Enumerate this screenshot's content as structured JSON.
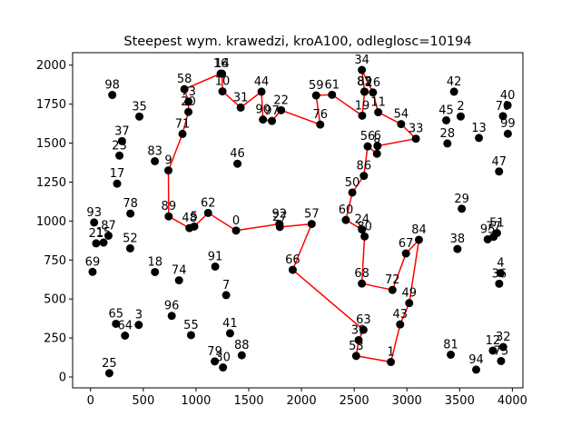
{
  "chart_data": {
    "type": "scatter",
    "title": "Steepest wym. krawedzi, kroA100, odleglosc=10194",
    "xlabel": "",
    "ylabel": "",
    "xlim": [
      -170,
      4100
    ],
    "ylim": [
      -70,
      2080
    ],
    "xticks": [
      0,
      500,
      1000,
      1500,
      2000,
      2500,
      3000,
      3500,
      4000
    ],
    "yticks": [
      0,
      250,
      500,
      750,
      1000,
      1250,
      1500,
      1750,
      2000
    ],
    "grid": false,
    "point_color": "#000000",
    "route_color": "#ff0000",
    "points": [
      {
        "id": "0",
        "x": 1380,
        "y": 939
      },
      {
        "id": "1",
        "x": 2848,
        "y": 96
      },
      {
        "id": "2",
        "x": 3510,
        "y": 1671
      },
      {
        "id": "3",
        "x": 457,
        "y": 334
      },
      {
        "id": "4",
        "x": 3888,
        "y": 666
      },
      {
        "id": "5",
        "x": 984,
        "y": 965
      },
      {
        "id": "6",
        "x": 2721,
        "y": 1482
      },
      {
        "id": "7",
        "x": 1286,
        "y": 525
      },
      {
        "id": "8",
        "x": 2716,
        "y": 1432
      },
      {
        "id": "9",
        "x": 738,
        "y": 1325
      },
      {
        "id": "10",
        "x": 1251,
        "y": 1832
      },
      {
        "id": "11",
        "x": 2728,
        "y": 1698
      },
      {
        "id": "12",
        "x": 3815,
        "y": 169
      },
      {
        "id": "13",
        "x": 3683,
        "y": 1533
      },
      {
        "id": "14",
        "x": 1247,
        "y": 1945
      },
      {
        "id": "15",
        "x": 123,
        "y": 862
      },
      {
        "id": "16",
        "x": 1234,
        "y": 1946
      },
      {
        "id": "17",
        "x": 252,
        "y": 1240
      },
      {
        "id": "18",
        "x": 611,
        "y": 673
      },
      {
        "id": "19",
        "x": 2576,
        "y": 1676
      },
      {
        "id": "20",
        "x": 928,
        "y": 1700
      },
      {
        "id": "21",
        "x": 53,
        "y": 857
      },
      {
        "id": "22",
        "x": 1807,
        "y": 1711
      },
      {
        "id": "23",
        "x": 274,
        "y": 1420
      },
      {
        "id": "24",
        "x": 2574,
        "y": 946
      },
      {
        "id": "25",
        "x": 178,
        "y": 24
      },
      {
        "id": "26",
        "x": 2678,
        "y": 1825
      },
      {
        "id": "27",
        "x": 1795,
        "y": 962
      },
      {
        "id": "28",
        "x": 3384,
        "y": 1498
      },
      {
        "id": "29",
        "x": 3520,
        "y": 1079
      },
      {
        "id": "30",
        "x": 1256,
        "y": 61
      },
      {
        "id": "31",
        "x": 1424,
        "y": 1728
      },
      {
        "id": "32",
        "x": 3913,
        "y": 192
      },
      {
        "id": "33",
        "x": 3085,
        "y": 1528
      },
      {
        "id": "34",
        "x": 2573,
        "y": 1969
      },
      {
        "id": "35",
        "x": 463,
        "y": 1670
      },
      {
        "id": "36",
        "x": 3875,
        "y": 598
      },
      {
        "id": "37",
        "x": 298,
        "y": 1513
      },
      {
        "id": "38",
        "x": 3479,
        "y": 821
      },
      {
        "id": "39",
        "x": 2542,
        "y": 236
      },
      {
        "id": "40",
        "x": 3955,
        "y": 1743
      },
      {
        "id": "41",
        "x": 1323,
        "y": 280
      },
      {
        "id": "42",
        "x": 3447,
        "y": 1830
      },
      {
        "id": "43",
        "x": 2936,
        "y": 337
      },
      {
        "id": "44",
        "x": 1621,
        "y": 1830
      },
      {
        "id": "45",
        "x": 3373,
        "y": 1646
      },
      {
        "id": "46",
        "x": 1393,
        "y": 1368
      },
      {
        "id": "47",
        "x": 3874,
        "y": 1318
      },
      {
        "id": "48",
        "x": 938,
        "y": 955
      },
      {
        "id": "49",
        "x": 3022,
        "y": 474
      },
      {
        "id": "50",
        "x": 2482,
        "y": 1183
      },
      {
        "id": "51",
        "x": 3854,
        "y": 923
      },
      {
        "id": "52",
        "x": 376,
        "y": 825
      },
      {
        "id": "53",
        "x": 2519,
        "y": 135
      },
      {
        "id": "54",
        "x": 2945,
        "y": 1622
      },
      {
        "id": "55",
        "x": 953,
        "y": 268
      },
      {
        "id": "56",
        "x": 2628,
        "y": 1479
      },
      {
        "id": "57",
        "x": 2097,
        "y": 981
      },
      {
        "id": "58",
        "x": 890,
        "y": 1846
      },
      {
        "id": "59",
        "x": 2139,
        "y": 1806
      },
      {
        "id": "60",
        "x": 2421,
        "y": 1007
      },
      {
        "id": "61",
        "x": 2290,
        "y": 1810
      },
      {
        "id": "62",
        "x": 1115,
        "y": 1052
      },
      {
        "id": "63",
        "x": 2588,
        "y": 302
      },
      {
        "id": "64",
        "x": 327,
        "y": 265
      },
      {
        "id": "65",
        "x": 241,
        "y": 341
      },
      {
        "id": "66",
        "x": 1917,
        "y": 687
      },
      {
        "id": "67",
        "x": 2991,
        "y": 792
      },
      {
        "id": "68",
        "x": 2573,
        "y": 599
      },
      {
        "id": "69",
        "x": 19,
        "y": 674
      },
      {
        "id": "70",
        "x": 3911,
        "y": 1673
      },
      {
        "id": "71",
        "x": 872,
        "y": 1559
      },
      {
        "id": "72",
        "x": 2863,
        "y": 558
      },
      {
        "id": "73",
        "x": 929,
        "y": 1766
      },
      {
        "id": "74",
        "x": 839,
        "y": 620
      },
      {
        "id": "75",
        "x": 3893,
        "y": 102
      },
      {
        "id": "76",
        "x": 2178,
        "y": 1619
      },
      {
        "id": "77",
        "x": 3822,
        "y": 899
      },
      {
        "id": "78",
        "x": 378,
        "y": 1048
      },
      {
        "id": "79",
        "x": 1178,
        "y": 100
      },
      {
        "id": "80",
        "x": 2599,
        "y": 901
      },
      {
        "id": "81",
        "x": 3416,
        "y": 143
      },
      {
        "id": "82",
        "x": 2597,
        "y": 1830
      },
      {
        "id": "83",
        "x": 610,
        "y": 1384
      },
      {
        "id": "84",
        "x": 3114,
        "y": 880
      },
      {
        "id": "85",
        "x": 2599,
        "y": 1830
      },
      {
        "id": "86",
        "x": 2592,
        "y": 1290
      },
      {
        "id": "87",
        "x": 170,
        "y": 906
      },
      {
        "id": "88",
        "x": 1434,
        "y": 139
      },
      {
        "id": "89",
        "x": 741,
        "y": 1030
      },
      {
        "id": "90",
        "x": 1635,
        "y": 1651
      },
      {
        "id": "91",
        "x": 1182,
        "y": 708
      },
      {
        "id": "92",
        "x": 1791,
        "y": 981
      },
      {
        "id": "93",
        "x": 34,
        "y": 991
      },
      {
        "id": "94",
        "x": 3657,
        "y": 47
      },
      {
        "id": "95",
        "x": 3766,
        "y": 883
      },
      {
        "id": "96",
        "x": 770,
        "y": 392
      },
      {
        "id": "97",
        "x": 1720,
        "y": 1642
      },
      {
        "id": "98",
        "x": 206,
        "y": 1809
      },
      {
        "id": "99",
        "x": 3957,
        "y": 1560
      }
    ],
    "route": [
      "0",
      "62",
      "5",
      "48",
      "89",
      "9",
      "71",
      "20",
      "73",
      "58",
      "16",
      "14",
      "10",
      "31",
      "44",
      "90",
      "97",
      "22",
      "76",
      "59",
      "61",
      "19",
      "85",
      "34",
      "26",
      "11",
      "54",
      "33",
      "6",
      "8",
      "56",
      "86",
      "50",
      "60",
      "24",
      "80",
      "68",
      "72",
      "67",
      "84",
      "49",
      "43",
      "1",
      "53",
      "39",
      "63",
      "66",
      "57",
      "27",
      "92",
      "0"
    ]
  }
}
